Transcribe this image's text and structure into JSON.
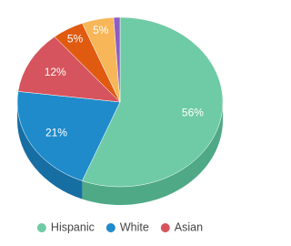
{
  "chart_data": {
    "type": "pie",
    "categories": [
      "Hispanic",
      "White",
      "Asian",
      null,
      null,
      null
    ],
    "values": [
      56,
      21,
      12,
      5,
      5,
      1
    ],
    "value_labels": [
      "56%",
      "21%",
      "12%",
      "5%",
      "5%",
      null
    ],
    "colors": [
      "#6fcba5",
      "#1f8bcb",
      "#d6545d",
      "#e05a10",
      "#f7b658",
      "#8f5bc4"
    ],
    "side_colors": [
      "#4fa986",
      "#176ea3",
      "#ad3f47",
      "#b4460b",
      "#cc9340",
      "#6f4399"
    ],
    "legend": "bottom"
  }
}
